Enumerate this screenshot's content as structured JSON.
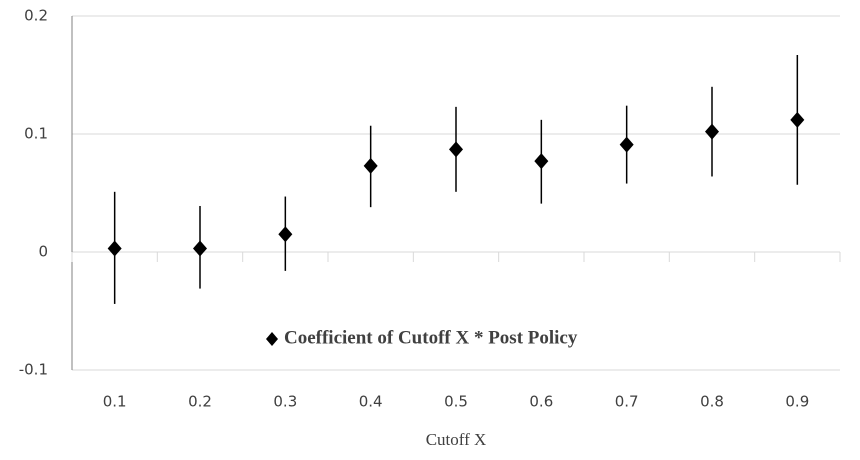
{
  "chart_data": {
    "type": "errorbar",
    "x_label": "Cutoff X",
    "categories": [
      "0.1",
      "0.2",
      "0.3",
      "0.4",
      "0.5",
      "0.6",
      "0.7",
      "0.8",
      "0.9"
    ],
    "series": [
      {
        "name": "Coefficient of Cutoff X * Post Policy",
        "color": "#000000",
        "values": [
          0.003,
          0.003,
          0.015,
          0.073,
          0.087,
          0.077,
          0.091,
          0.102,
          0.112
        ],
        "lower": [
          -0.044,
          -0.031,
          -0.016,
          0.038,
          0.051,
          0.041,
          0.058,
          0.064,
          0.057
        ],
        "upper": [
          0.051,
          0.039,
          0.047,
          0.107,
          0.123,
          0.112,
          0.124,
          0.14,
          0.167
        ]
      }
    ],
    "ylim": [
      -0.1,
      0.2
    ],
    "yticks": [
      -0.1,
      0,
      0.1,
      0.2
    ],
    "grid": true,
    "legend": "inside-bottom"
  }
}
